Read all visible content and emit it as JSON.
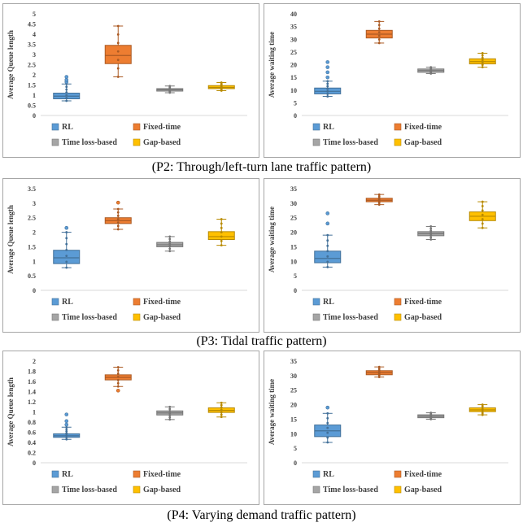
{
  "captions": {
    "p2": "(P2: Through/left-turn lane traffic pattern)",
    "p3": "(P3: Tidal traffic pattern)",
    "p4": "(P4: Varying demand traffic pattern)"
  },
  "colors": {
    "RL": "#5b9bd5",
    "Fixed-time": "#ed7d31",
    "Time loss-based": "#a5a5a5",
    "Gap-based": "#ffc000"
  },
  "chart_data": [
    {
      "type": "box",
      "row": "p2",
      "side": "left",
      "ylabel": "Average Queue length",
      "xlabel": "",
      "ylim": [
        0,
        5
      ],
      "yticks": [
        "0",
        "0.5",
        "1",
        "1.5",
        "2",
        "2.5",
        "3",
        "3.5",
        "4",
        "4.5",
        "5"
      ],
      "legend": [
        "RL",
        "Fixed-time",
        "Time loss-based",
        "Gap-based"
      ],
      "series": [
        {
          "name": "RL",
          "min": 0.72,
          "q1": 0.82,
          "median": 0.95,
          "q3": 1.1,
          "max": 1.55,
          "outliers": [
            1.65,
            1.75,
            1.9
          ]
        },
        {
          "name": "Fixed-time",
          "min": 1.9,
          "q1": 2.55,
          "median": 2.95,
          "q3": 3.45,
          "max": 4.4,
          "outliers": []
        },
        {
          "name": "Time loss-based",
          "min": 1.12,
          "q1": 1.2,
          "median": 1.27,
          "q3": 1.32,
          "max": 1.45,
          "outliers": []
        },
        {
          "name": "Gap-based",
          "min": 1.22,
          "q1": 1.32,
          "median": 1.38,
          "q3": 1.47,
          "max": 1.62,
          "outliers": []
        }
      ]
    },
    {
      "type": "box",
      "row": "p2",
      "side": "right",
      "ylabel": "Average waiting time",
      "xlabel": "",
      "ylim": [
        0,
        40
      ],
      "yticks": [
        "0",
        "5",
        "10",
        "15",
        "20",
        "25",
        "30",
        "35",
        "40"
      ],
      "legend": [
        "RL",
        "Fixed-time",
        "Time loss-based",
        "Gap-based"
      ],
      "series": [
        {
          "name": "RL",
          "min": 7.5,
          "q1": 8.5,
          "median": 9.5,
          "q3": 10.8,
          "max": 13.5,
          "outliers": [
            15,
            17,
            19,
            21
          ]
        },
        {
          "name": "Fixed-time",
          "min": 28.5,
          "q1": 30.5,
          "median": 32,
          "q3": 33.5,
          "max": 37,
          "outliers": []
        },
        {
          "name": "Time loss-based",
          "min": 16.5,
          "q1": 17,
          "median": 17.7,
          "q3": 18.3,
          "max": 19,
          "outliers": []
        },
        {
          "name": "Gap-based",
          "min": 19,
          "q1": 20.3,
          "median": 21.2,
          "q3": 22.3,
          "max": 24.5,
          "outliers": []
        }
      ]
    },
    {
      "type": "box",
      "row": "p3",
      "side": "left",
      "ylabel": "Average Queue length",
      "xlabel": "",
      "ylim": [
        0,
        3.5
      ],
      "yticks": [
        "0",
        "0.5",
        "1",
        "1.5",
        "2",
        "2.5",
        "3",
        "3.5"
      ],
      "legend": [
        "RL",
        "Fixed-time",
        "Time loss-based",
        "Gap-based"
      ],
      "series": [
        {
          "name": "RL",
          "min": 0.78,
          "q1": 0.92,
          "median": 1.12,
          "q3": 1.38,
          "max": 2.0,
          "outliers": [
            2.15
          ]
        },
        {
          "name": "Fixed-time",
          "min": 2.1,
          "q1": 2.3,
          "median": 2.4,
          "q3": 2.5,
          "max": 2.8,
          "outliers": [
            3.02
          ]
        },
        {
          "name": "Time loss-based",
          "min": 1.35,
          "q1": 1.5,
          "median": 1.57,
          "q3": 1.65,
          "max": 1.85,
          "outliers": []
        },
        {
          "name": "Gap-based",
          "min": 1.55,
          "q1": 1.75,
          "median": 1.85,
          "q3": 2.02,
          "max": 2.45,
          "outliers": []
        }
      ]
    },
    {
      "type": "box",
      "row": "p3",
      "side": "right",
      "ylabel": "Average waiting time",
      "xlabel": "",
      "ylim": [
        0,
        35
      ],
      "yticks": [
        "0",
        "5",
        "10",
        "15",
        "20",
        "25",
        "30",
        "35"
      ],
      "legend": [
        "RL",
        "Fixed-time",
        "Time loss-based",
        "Gap-based"
      ],
      "series": [
        {
          "name": "RL",
          "min": 8,
          "q1": 9.5,
          "median": 11,
          "q3": 13.5,
          "max": 19,
          "outliers": [
            23,
            26.5
          ]
        },
        {
          "name": "Fixed-time",
          "min": 29.5,
          "q1": 30.5,
          "median": 31,
          "q3": 31.7,
          "max": 33,
          "outliers": []
        },
        {
          "name": "Time loss-based",
          "min": 17.5,
          "q1": 18.8,
          "median": 19.5,
          "q3": 20.2,
          "max": 22,
          "outliers": []
        },
        {
          "name": "Gap-based",
          "min": 21.5,
          "q1": 24,
          "median": 25.5,
          "q3": 27,
          "max": 30.5,
          "outliers": []
        }
      ]
    },
    {
      "type": "box",
      "row": "p4",
      "side": "left",
      "ylabel": "Average Queue length",
      "xlabel": "",
      "ylim": [
        0,
        2
      ],
      "yticks": [
        "0",
        "0.2",
        "0.4",
        "0.6",
        "0.8",
        "1",
        "1.2",
        "1.4",
        "1.6",
        "1.8",
        "2"
      ],
      "legend": [
        "RL",
        "Fixed-time",
        "Time loss-based",
        "Gap-based"
      ],
      "series": [
        {
          "name": "RL",
          "min": 0.46,
          "q1": 0.5,
          "median": 0.53,
          "q3": 0.57,
          "max": 0.7,
          "outliers": [
            0.75,
            0.82,
            0.95
          ]
        },
        {
          "name": "Fixed-time",
          "min": 1.5,
          "q1": 1.63,
          "median": 1.68,
          "q3": 1.73,
          "max": 1.88,
          "outliers": [
            1.42
          ]
        },
        {
          "name": "Time loss-based",
          "min": 0.85,
          "q1": 0.94,
          "median": 0.98,
          "q3": 1.02,
          "max": 1.1,
          "outliers": []
        },
        {
          "name": "Gap-based",
          "min": 0.9,
          "q1": 0.99,
          "median": 1.03,
          "q3": 1.08,
          "max": 1.18,
          "outliers": []
        }
      ]
    },
    {
      "type": "box",
      "row": "p4",
      "side": "right",
      "ylabel": "Average waiting time",
      "xlabel": "",
      "ylim": [
        0,
        35
      ],
      "yticks": [
        "0",
        "5",
        "10",
        "15",
        "20",
        "25",
        "30",
        "35"
      ],
      "legend": [
        "RL",
        "Fixed-time",
        "Time loss-based",
        "Gap-based"
      ],
      "series": [
        {
          "name": "RL",
          "min": 7,
          "q1": 9,
          "median": 11,
          "q3": 13,
          "max": 17,
          "outliers": [
            19
          ]
        },
        {
          "name": "Fixed-time",
          "min": 29.5,
          "q1": 30.3,
          "median": 31,
          "q3": 31.7,
          "max": 33,
          "outliers": []
        },
        {
          "name": "Time loss-based",
          "min": 15,
          "q1": 15.5,
          "median": 16,
          "q3": 16.5,
          "max": 17.2,
          "outliers": []
        },
        {
          "name": "Gap-based",
          "min": 16.5,
          "q1": 17.6,
          "median": 18.2,
          "q3": 18.9,
          "max": 20,
          "outliers": []
        }
      ]
    }
  ]
}
